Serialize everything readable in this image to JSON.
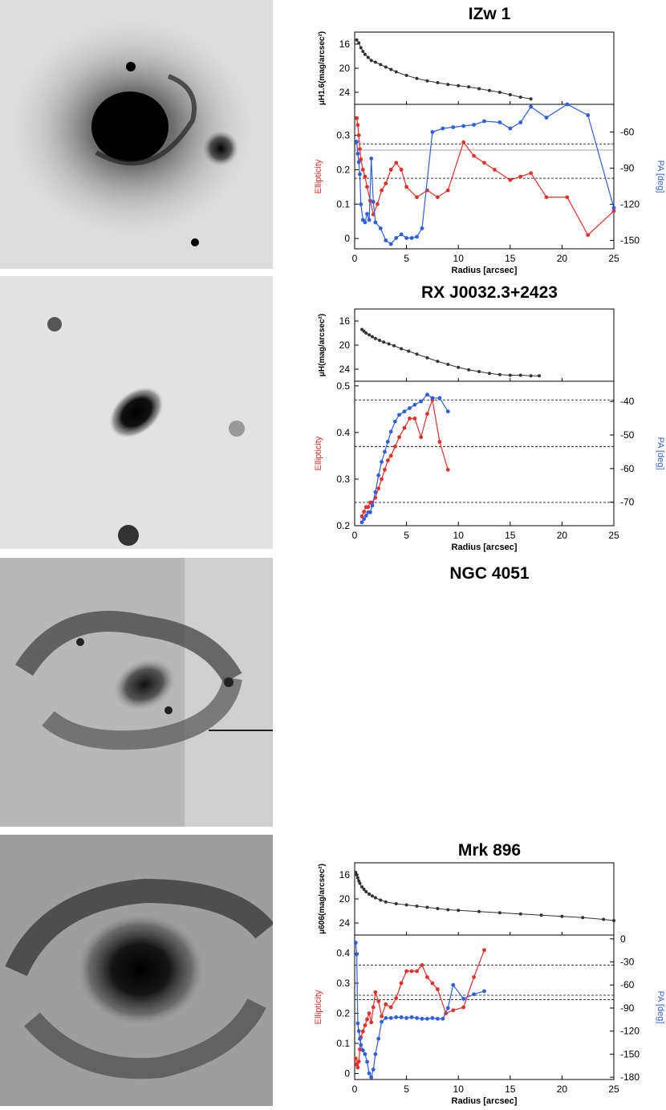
{
  "panels": [
    {
      "name": "IZw 1",
      "galaxy_image": "inverted grayscale image of a face-on spiral host galaxy with a bright core and a companion",
      "sb_ylabel": "μH1.6(mag/arcsec²)",
      "ell_label": "Ellipticity",
      "pa_label": "PA [deg]",
      "xlabel": "Radius [arcsec]"
    },
    {
      "name": "RX J0032.3+2423",
      "galaxy_image": "inverted grayscale image of a compact elliptical host galaxy",
      "sb_ylabel": "μH(mag/arcsec²)",
      "ell_label": "Ellipticity",
      "pa_label": "PA [deg]",
      "xlabel": "Radius [arcsec]"
    },
    {
      "name": "NGC 4051",
      "galaxy_image": "inverted grayscale image of a barred spiral galaxy with prominent arms"
    },
    {
      "name": "Mrk 896",
      "galaxy_image": "inverted grayscale image of a spiral galaxy with a bright core",
      "sb_ylabel": "μ606(mag/arcsec²)",
      "ell_label": "Ellipticity",
      "pa_label": "PA [deg]",
      "xlabel": "Radius [arcsec]"
    }
  ],
  "colors": {
    "ellipticity": "#e8302a",
    "pa": "#2f5fe0",
    "profile": "#333333"
  },
  "chart_data": [
    {
      "type": "line",
      "title": "IZw 1",
      "xlabel": "Radius [arcsec]",
      "xlim": [
        0,
        25
      ],
      "xticks": [
        0,
        5,
        10,
        15,
        20,
        25
      ],
      "sb": {
        "ylabel": "μH1.6(mag/arcsec²)",
        "ylim": [
          26,
          14
        ],
        "yticks": [
          16,
          20,
          24
        ],
        "x": [
          0.2,
          0.4,
          0.6,
          0.8,
          1.0,
          1.3,
          1.6,
          2.0,
          2.5,
          3.0,
          3.5,
          4.0,
          5.0,
          6.0,
          7.0,
          8.0,
          9.0,
          10.0,
          11.0,
          12.0,
          13.0,
          14.0,
          15.0,
          16.0,
          17.0
        ],
        "y": [
          15.3,
          15.8,
          16.6,
          17.2,
          17.7,
          18.2,
          18.7,
          19.0,
          19.4,
          19.8,
          20.2,
          20.6,
          21.2,
          21.7,
          22.1,
          22.4,
          22.7,
          22.9,
          23.1,
          23.4,
          23.7,
          24.0,
          24.4,
          24.8,
          25.1
        ]
      },
      "ell": {
        "name": "Ellipticity",
        "ylim": [
          -0.03,
          0.39
        ],
        "yticks": [
          0,
          0.1,
          0.2,
          0.3
        ],
        "x": [
          0.2,
          0.3,
          0.4,
          0.5,
          0.6,
          0.8,
          1.0,
          1.2,
          1.5,
          1.8,
          2.2,
          2.6,
          3.0,
          3.5,
          4.0,
          4.5,
          5.0,
          6.0,
          7.0,
          8.0,
          9.0,
          10.5,
          11.5,
          12.5,
          13.5,
          15.0,
          16.0,
          17.0,
          18.5,
          20.5,
          22.5,
          25.0
        ],
        "y": [
          0.35,
          0.33,
          0.3,
          0.26,
          0.23,
          0.2,
          0.18,
          0.15,
          0.11,
          0.07,
          0.1,
          0.14,
          0.16,
          0.2,
          0.22,
          0.2,
          0.15,
          0.12,
          0.14,
          0.12,
          0.14,
          0.28,
          0.24,
          0.22,
          0.2,
          0.17,
          0.18,
          0.19,
          0.12,
          0.12,
          0.01,
          0.08
        ]
      },
      "pa": {
        "name": "PA [deg]",
        "ylim": [
          -157,
          -37
        ],
        "yticks": [
          -60,
          -90,
          -120,
          -150
        ],
        "x": [
          0.2,
          0.3,
          0.4,
          0.5,
          0.6,
          0.8,
          1.0,
          1.2,
          1.4,
          1.6,
          1.8,
          2.0,
          2.5,
          3.0,
          3.5,
          4.0,
          4.5,
          5.0,
          5.5,
          6.0,
          6.5,
          7.5,
          8.5,
          9.5,
          10.5,
          11.5,
          12.5,
          14.0,
          15.0,
          16.0,
          17.0,
          18.5,
          20.5,
          22.5,
          25.0
        ],
        "y": [
          -68,
          -78,
          -85,
          -95,
          -120,
          -133,
          -135,
          -128,
          -133,
          -82,
          -118,
          -135,
          -140,
          -150,
          -153,
          -148,
          -145,
          -148,
          -148,
          -147,
          -140,
          -60,
          -57,
          -56,
          -55,
          -54,
          -51,
          -52,
          -57,
          -52,
          -39,
          -48,
          -37,
          -46,
          -123
        ]
      },
      "hlines_ell": [
        0.275,
        0.175
      ],
      "hlines_pa": [
        -75
      ]
    },
    {
      "type": "line",
      "title": "RX J0032.3+2423",
      "xlabel": "Radius [arcsec]",
      "xlim": [
        0,
        25
      ],
      "xticks": [
        0,
        5,
        10,
        15,
        20,
        25
      ],
      "sb": {
        "ylabel": "μH(mag/arcsec²)",
        "ylim": [
          26,
          14
        ],
        "yticks": [
          16,
          20,
          24
        ],
        "x": [
          0.7,
          0.9,
          1.1,
          1.4,
          1.7,
          2.0,
          2.4,
          2.8,
          3.3,
          3.8,
          4.5,
          5.2,
          6.0,
          7.0,
          8.0,
          9.0,
          10.0,
          11.0,
          12.0,
          13.0,
          14.0,
          15.0,
          16.0,
          17.0,
          17.8
        ],
        "y": [
          17.4,
          17.7,
          18.0,
          18.3,
          18.6,
          18.9,
          19.2,
          19.5,
          19.8,
          20.1,
          20.6,
          21.0,
          21.5,
          22.1,
          22.7,
          23.2,
          23.7,
          24.1,
          24.4,
          24.7,
          24.9,
          25.0,
          25.0,
          25.1,
          25.1
        ]
      },
      "ell": {
        "name": "Ellipticity",
        "ylim": [
          0.2,
          0.51
        ],
        "yticks": [
          0.2,
          0.3,
          0.4,
          0.5
        ],
        "x": [
          0.7,
          0.9,
          1.1,
          1.3,
          1.5,
          1.7,
          2.0,
          2.3,
          2.6,
          2.9,
          3.2,
          3.5,
          3.9,
          4.3,
          4.8,
          5.3,
          5.8,
          6.4,
          7.0,
          7.5,
          8.2,
          9.0
        ],
        "y": [
          0.22,
          0.23,
          0.24,
          0.24,
          0.25,
          0.25,
          0.26,
          0.28,
          0.3,
          0.32,
          0.34,
          0.35,
          0.37,
          0.39,
          0.41,
          0.43,
          0.43,
          0.39,
          0.44,
          0.47,
          0.38,
          0.32
        ]
      },
      "pa": {
        "name": "PA [deg]",
        "ylim": [
          -77,
          -34
        ],
        "yticks": [
          -40,
          -50,
          -60,
          -70
        ],
        "x": [
          0.7,
          0.9,
          1.1,
          1.3,
          1.5,
          1.7,
          2.0,
          2.3,
          2.6,
          2.9,
          3.2,
          3.5,
          3.9,
          4.3,
          4.8,
          5.3,
          5.8,
          6.4,
          7.0,
          7.5,
          8.2,
          9.0
        ],
        "y": [
          -76,
          -75,
          -74,
          -73,
          -73,
          -71,
          -67,
          -62,
          -58,
          -55,
          -52,
          -49,
          -46,
          -44,
          -43,
          -42,
          -41,
          -40,
          -38,
          -39,
          -39,
          -43
        ]
      },
      "hlines_ell": [
        0.47,
        0.37,
        0.25
      ],
      "hlines_pa": []
    },
    {
      "type": "line",
      "title": "Mrk 896",
      "xlabel": "Radius [arcsec]",
      "xlim": [
        0,
        25
      ],
      "xticks": [
        0,
        5,
        10,
        15,
        20,
        25
      ],
      "sb": {
        "ylabel": "μ606(mag/arcsec²)",
        "ylim": [
          26,
          14
        ],
        "yticks": [
          16,
          20,
          24
        ],
        "x": [
          0.1,
          0.2,
          0.3,
          0.4,
          0.5,
          0.7,
          0.9,
          1.1,
          1.4,
          1.7,
          2.0,
          2.5,
          3.0,
          4.0,
          5.0,
          6.0,
          7.0,
          8.0,
          9.0,
          10.0,
          12.0,
          14.0,
          16.0,
          18.0,
          20.0,
          22.0,
          24.0,
          25.0
        ],
        "y": [
          15.6,
          16.0,
          16.5,
          17.0,
          17.4,
          18.0,
          18.4,
          18.8,
          19.2,
          19.5,
          19.8,
          20.2,
          20.5,
          20.8,
          21.0,
          21.2,
          21.4,
          21.6,
          21.8,
          21.9,
          22.1,
          22.3,
          22.5,
          22.7,
          22.9,
          23.1,
          23.4,
          23.6
        ]
      },
      "ell": {
        "name": "Ellipticity",
        "ylim": [
          -0.02,
          0.46
        ],
        "yticks": [
          0,
          0.1,
          0.2,
          0.3,
          0.4
        ],
        "x": [
          0.1,
          0.2,
          0.3,
          0.4,
          0.5,
          0.6,
          0.8,
          1.0,
          1.2,
          1.4,
          1.6,
          1.8,
          2.0,
          2.3,
          2.6,
          3.0,
          3.5,
          4.0,
          4.5,
          5.0,
          5.5,
          6.0,
          6.5,
          7.0,
          7.5,
          8.0,
          8.8,
          9.5,
          10.5,
          11.5,
          12.5
        ],
        "y": [
          0.05,
          0.03,
          0.02,
          0.04,
          0.08,
          0.12,
          0.14,
          0.16,
          0.18,
          0.2,
          0.17,
          0.22,
          0.27,
          0.24,
          0.19,
          0.23,
          0.22,
          0.25,
          0.3,
          0.34,
          0.34,
          0.34,
          0.36,
          0.32,
          0.3,
          0.28,
          0.2,
          0.21,
          0.22,
          0.32,
          0.41
        ]
      },
      "pa": {
        "name": "PA [deg]",
        "ylim": [
          -183,
          5
        ],
        "yticks": [
          0,
          -30,
          -60,
          -90,
          -120,
          -150,
          -180
        ],
        "x": [
          0.1,
          0.2,
          0.3,
          0.4,
          0.5,
          0.6,
          0.8,
          1.0,
          1.2,
          1.4,
          1.6,
          1.8,
          2.0,
          2.3,
          2.6,
          3.0,
          3.5,
          4.0,
          4.5,
          5.0,
          5.5,
          6.0,
          6.5,
          7.0,
          7.5,
          8.0,
          8.5,
          9.0,
          9.5,
          10.5,
          11.5,
          12.5
        ],
        "y": [
          -5,
          -20,
          -110,
          -120,
          -130,
          -138,
          -145,
          -150,
          -160,
          -175,
          -180,
          -170,
          -150,
          -130,
          -108,
          -103,
          -103,
          -102,
          -102,
          -103,
          -102,
          -103,
          -104,
          -104,
          -103,
          -104,
          -104,
          -90,
          -60,
          -78,
          -72,
          -68
        ]
      },
      "hlines_ell": [
        0.36,
        0.26,
        0.245
      ],
      "hlines_pa": []
    }
  ]
}
